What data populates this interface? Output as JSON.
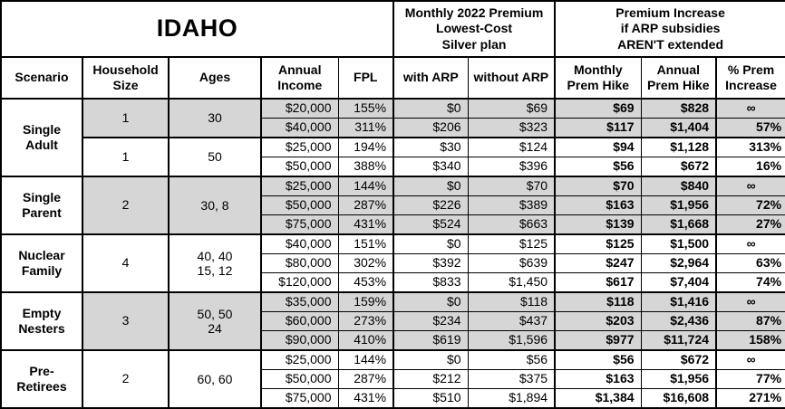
{
  "colors": {
    "shaded_row": "#d6d6d6",
    "border": "#000000",
    "background": "#ffffff"
  },
  "table": {
    "header": {
      "region": "IDAHO",
      "premium": "Monthly 2022 Premium\nLowest-Cost\nSilver plan",
      "increase": "Premium Increase\nif ARP subsidies\nAREN'T extended"
    },
    "columns": [
      "Scenario",
      "Household\nSize",
      "Ages",
      "Annual\nIncome",
      "FPL",
      "with ARP",
      "without ARP",
      "Monthly\nPrem Hike",
      "Annual\nPrem Hike",
      "% Prem\nIncrease"
    ],
    "groups": [
      {
        "scenario": "Single\nAdult",
        "subgroups": [
          {
            "household_size": "1",
            "ages": "30",
            "shaded": true,
            "rows": [
              {
                "income": "$20,000",
                "fpl": "155%",
                "with_arp": "$0",
                "without_arp": "$69",
                "monthly_hike": "$69",
                "annual_hike": "$828",
                "pct_increase": "∞"
              },
              {
                "income": "$40,000",
                "fpl": "311%",
                "with_arp": "$206",
                "without_arp": "$323",
                "monthly_hike": "$117",
                "annual_hike": "$1,404",
                "pct_increase": "57%"
              }
            ]
          },
          {
            "household_size": "1",
            "ages": "50",
            "shaded": false,
            "rows": [
              {
                "income": "$25,000",
                "fpl": "194%",
                "with_arp": "$30",
                "without_arp": "$124",
                "monthly_hike": "$94",
                "annual_hike": "$1,128",
                "pct_increase": "313%"
              },
              {
                "income": "$50,000",
                "fpl": "388%",
                "with_arp": "$340",
                "without_arp": "$396",
                "monthly_hike": "$56",
                "annual_hike": "$672",
                "pct_increase": "16%"
              }
            ]
          }
        ]
      },
      {
        "scenario": "Single\nParent",
        "subgroups": [
          {
            "household_size": "2",
            "ages": "30, 8",
            "shaded": true,
            "rows": [
              {
                "income": "$25,000",
                "fpl": "144%",
                "with_arp": "$0",
                "without_arp": "$70",
                "monthly_hike": "$70",
                "annual_hike": "$840",
                "pct_increase": "∞"
              },
              {
                "income": "$50,000",
                "fpl": "287%",
                "with_arp": "$226",
                "without_arp": "$389",
                "monthly_hike": "$163",
                "annual_hike": "$1,956",
                "pct_increase": "72%"
              },
              {
                "income": "$75,000",
                "fpl": "431%",
                "with_arp": "$524",
                "without_arp": "$663",
                "monthly_hike": "$139",
                "annual_hike": "$1,668",
                "pct_increase": "27%"
              }
            ]
          }
        ]
      },
      {
        "scenario": "Nuclear\nFamily",
        "subgroups": [
          {
            "household_size": "4",
            "ages": "40, 40\n15, 12",
            "shaded": false,
            "rows": [
              {
                "income": "$40,000",
                "fpl": "151%",
                "with_arp": "$0",
                "without_arp": "$125",
                "monthly_hike": "$125",
                "annual_hike": "$1,500",
                "pct_increase": "∞"
              },
              {
                "income": "$80,000",
                "fpl": "302%",
                "with_arp": "$392",
                "without_arp": "$639",
                "monthly_hike": "$247",
                "annual_hike": "$2,964",
                "pct_increase": "63%"
              },
              {
                "income": "$120,000",
                "fpl": "453%",
                "with_arp": "$833",
                "without_arp": "$1,450",
                "monthly_hike": "$617",
                "annual_hike": "$7,404",
                "pct_increase": "74%"
              }
            ]
          }
        ]
      },
      {
        "scenario": "Empty\nNesters",
        "subgroups": [
          {
            "household_size": "3",
            "ages": "50, 50\n24",
            "shaded": true,
            "rows": [
              {
                "income": "$35,000",
                "fpl": "159%",
                "with_arp": "$0",
                "without_arp": "$118",
                "monthly_hike": "$118",
                "annual_hike": "$1,416",
                "pct_increase": "∞"
              },
              {
                "income": "$60,000",
                "fpl": "273%",
                "with_arp": "$234",
                "without_arp": "$437",
                "monthly_hike": "$203",
                "annual_hike": "$2,436",
                "pct_increase": "87%"
              },
              {
                "income": "$90,000",
                "fpl": "410%",
                "with_arp": "$619",
                "without_arp": "$1,596",
                "monthly_hike": "$977",
                "annual_hike": "$11,724",
                "pct_increase": "158%"
              }
            ]
          }
        ]
      },
      {
        "scenario": "Pre-\nRetirees",
        "subgroups": [
          {
            "household_size": "2",
            "ages": "60, 60",
            "shaded": false,
            "rows": [
              {
                "income": "$25,000",
                "fpl": "144%",
                "with_arp": "$0",
                "without_arp": "$56",
                "monthly_hike": "$56",
                "annual_hike": "$672",
                "pct_increase": "∞"
              },
              {
                "income": "$50,000",
                "fpl": "287%",
                "with_arp": "$212",
                "without_arp": "$375",
                "monthly_hike": "$163",
                "annual_hike": "$1,956",
                "pct_increase": "77%"
              },
              {
                "income": "$75,000",
                "fpl": "431%",
                "with_arp": "$510",
                "without_arp": "$1,894",
                "monthly_hike": "$1,384",
                "annual_hike": "$16,608",
                "pct_increase": "271%"
              }
            ]
          }
        ]
      }
    ]
  }
}
